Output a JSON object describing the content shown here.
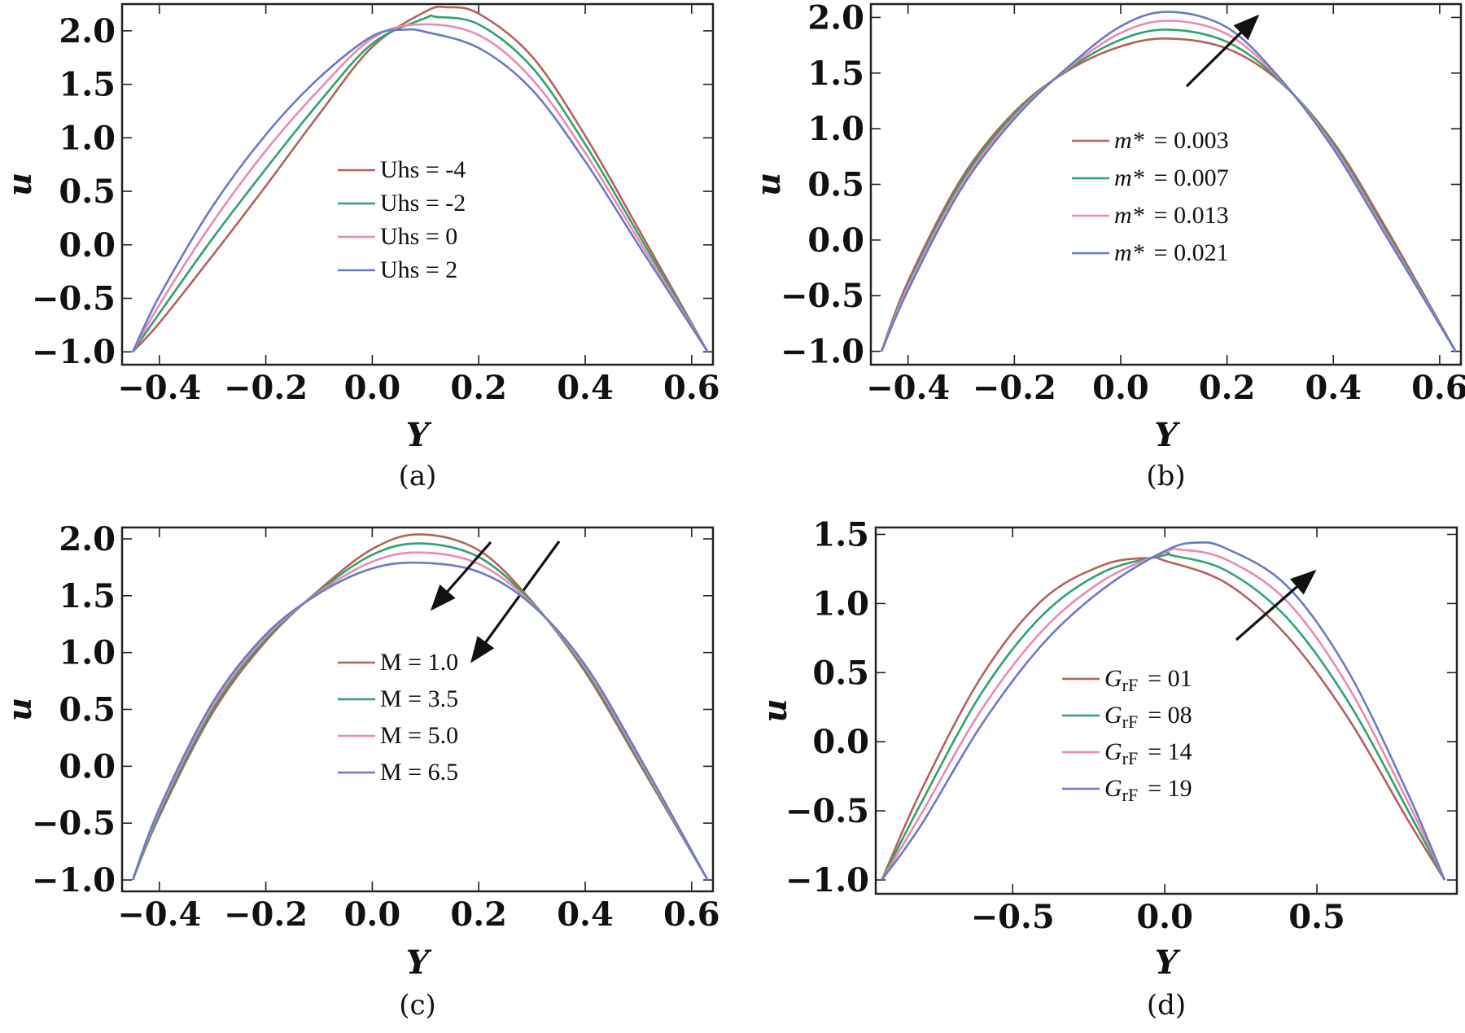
{
  "colors": {
    "red": "#b5625a",
    "green": "#2ea36b",
    "pink": "#ec8ab0",
    "blue": "#6b79c8",
    "arrow": "#111111"
  },
  "chart_data": [
    {
      "type": "line",
      "caption": "(a)",
      "xlabel": "Y",
      "ylabel": "u",
      "xlim": [
        -0.47,
        0.64
      ],
      "ylim": [
        -1.12,
        2.25
      ],
      "xticks": [
        "−0.4",
        "−0.2",
        "0.0",
        "0.2",
        "0.4",
        "0.6"
      ],
      "xtick_values": [
        -0.4,
        -0.2,
        0.0,
        0.2,
        0.4,
        0.6
      ],
      "yticks": [
        "−1.0",
        "−0.5",
        "0.0",
        "0.5",
        "1.0",
        "1.5",
        "2.0"
      ],
      "ytick_values": [
        -1.0,
        -0.5,
        0.0,
        0.5,
        1.0,
        1.5,
        2.0
      ],
      "legend_position": "center",
      "arrow": "down-left",
      "series": [
        {
          "name": "Uhs = -4",
          "color": "#b5625a",
          "x": [
            -0.45,
            -0.4,
            -0.3,
            -0.2,
            -0.1,
            0.0,
            0.1,
            0.14,
            0.2,
            0.3,
            0.4,
            0.5,
            0.63
          ],
          "y": [
            -1.0,
            -0.73,
            -0.1,
            0.55,
            1.22,
            1.85,
            2.18,
            2.22,
            2.16,
            1.76,
            1.02,
            0.15,
            -1.0
          ]
        },
        {
          "name": "Uhs = -2",
          "color": "#2ea36b",
          "x": [
            -0.45,
            -0.4,
            -0.3,
            -0.2,
            -0.1,
            0.0,
            0.1,
            0.12,
            0.2,
            0.3,
            0.4,
            0.5,
            0.63
          ],
          "y": [
            -1.0,
            -0.64,
            0.06,
            0.71,
            1.33,
            1.88,
            2.12,
            2.13,
            2.06,
            1.66,
            0.94,
            0.1,
            -1.0
          ]
        },
        {
          "name": "Uhs = 0",
          "color": "#ec8ab0",
          "x": [
            -0.45,
            -0.4,
            -0.3,
            -0.2,
            -0.1,
            0.0,
            0.09,
            0.2,
            0.3,
            0.4,
            0.5,
            0.63
          ],
          "y": [
            -1.0,
            -0.56,
            0.21,
            0.88,
            1.45,
            1.93,
            2.06,
            1.96,
            1.55,
            0.86,
            0.05,
            -1.0
          ]
        },
        {
          "name": "Uhs = 2",
          "color": "#6b79c8",
          "x": [
            -0.45,
            -0.4,
            -0.3,
            -0.2,
            -0.1,
            0.0,
            0.06,
            0.1,
            0.2,
            0.3,
            0.4,
            0.5,
            0.63
          ],
          "y": [
            -1.0,
            -0.48,
            0.36,
            1.03,
            1.56,
            1.95,
            2.01,
            1.99,
            1.84,
            1.45,
            0.78,
            0.0,
            -1.0
          ]
        }
      ]
    },
    {
      "type": "line",
      "caption": "(b)",
      "xlabel": "Y",
      "ylabel": "u",
      "xlim": [
        -0.47,
        0.64
      ],
      "ylim": [
        -1.12,
        2.12
      ],
      "xticks": [
        "−0.4",
        "−0.2",
        "0.0",
        "0.2",
        "0.4",
        "0.6"
      ],
      "xtick_values": [
        -0.4,
        -0.2,
        0.0,
        0.2,
        0.4,
        0.6
      ],
      "yticks": [
        "−1.0",
        "−0.5",
        "0.0",
        "0.5",
        "1.0",
        "1.5",
        "2.0"
      ],
      "ytick_values": [
        -1.0,
        -0.5,
        0.0,
        0.5,
        1.0,
        1.5,
        2.0
      ],
      "legend_position": "center",
      "arrow": "up-right",
      "series": [
        {
          "name_prefix": "m*",
          "name_value": "=  0.003",
          "color": "#b5625a",
          "x": [
            -0.45,
            -0.4,
            -0.3,
            -0.2,
            -0.1,
            0.0,
            0.09,
            0.2,
            0.3,
            0.4,
            0.5,
            0.63
          ],
          "y": [
            -1.0,
            -0.37,
            0.55,
            1.15,
            1.52,
            1.74,
            1.81,
            1.72,
            1.42,
            0.88,
            0.1,
            -1.0
          ]
        },
        {
          "name_prefix": "m*",
          "name_value": "=  0.007",
          "color": "#2ea36b",
          "x": [
            -0.45,
            -0.4,
            -0.3,
            -0.2,
            -0.1,
            0.0,
            0.09,
            0.2,
            0.3,
            0.4,
            0.5,
            0.63
          ],
          "y": [
            -1.0,
            -0.4,
            0.52,
            1.13,
            1.53,
            1.8,
            1.89,
            1.78,
            1.43,
            0.86,
            0.07,
            -1.0
          ]
        },
        {
          "name_prefix": "m*",
          "name_value": "=  0.013",
          "color": "#ec8ab0",
          "x": [
            -0.45,
            -0.4,
            -0.3,
            -0.2,
            -0.1,
            0.0,
            0.09,
            0.2,
            0.3,
            0.4,
            0.5,
            0.63
          ],
          "y": [
            -1.0,
            -0.42,
            0.49,
            1.11,
            1.54,
            1.86,
            1.97,
            1.85,
            1.44,
            0.84,
            0.05,
            -1.0
          ]
        },
        {
          "name_prefix": "m*",
          "name_value": "=  0.021",
          "color": "#6b79c8",
          "x": [
            -0.45,
            -0.4,
            -0.3,
            -0.2,
            -0.1,
            0.0,
            0.09,
            0.2,
            0.3,
            0.4,
            0.5,
            0.63
          ],
          "y": [
            -1.0,
            -0.45,
            0.46,
            1.09,
            1.55,
            1.92,
            2.05,
            1.91,
            1.45,
            0.82,
            0.03,
            -1.0
          ]
        }
      ]
    },
    {
      "type": "line",
      "caption": "(c)",
      "xlabel": "Y",
      "ylabel": "u",
      "xlim": [
        -0.47,
        0.64
      ],
      "ylim": [
        -1.1,
        2.1
      ],
      "xticks": [
        "−0.4",
        "−0.2",
        "0.0",
        "0.2",
        "0.4",
        "0.6"
      ],
      "xtick_values": [
        -0.4,
        -0.2,
        0.0,
        0.2,
        0.4,
        0.6
      ],
      "yticks": [
        "−1.0",
        "−0.5",
        "0.0",
        "0.5",
        "1.0",
        "1.5",
        "2.0"
      ],
      "ytick_values": [
        -1.0,
        -0.5,
        0.0,
        0.5,
        1.0,
        1.5,
        2.0
      ],
      "legend_position": "center",
      "arrow": "down-left",
      "series": [
        {
          "name": "M = 1.0",
          "color": "#b5625a",
          "x": [
            -0.45,
            -0.4,
            -0.3,
            -0.2,
            -0.1,
            0.0,
            0.09,
            0.2,
            0.3,
            0.4,
            0.5,
            0.63
          ],
          "y": [
            -1.0,
            -0.44,
            0.47,
            1.1,
            1.55,
            1.91,
            2.04,
            1.9,
            1.45,
            0.83,
            0.04,
            -1.0
          ]
        },
        {
          "name": "M = 3.5",
          "color": "#2ea36b",
          "x": [
            -0.45,
            -0.4,
            -0.3,
            -0.2,
            -0.1,
            0.0,
            0.09,
            0.2,
            0.3,
            0.4,
            0.5,
            0.63
          ],
          "y": [
            -1.0,
            -0.42,
            0.5,
            1.12,
            1.54,
            1.86,
            1.96,
            1.84,
            1.44,
            0.85,
            0.06,
            -1.0
          ]
        },
        {
          "name": "M = 5.0",
          "color": "#ec8ab0",
          "x": [
            -0.45,
            -0.4,
            -0.3,
            -0.2,
            -0.1,
            0.0,
            0.09,
            0.2,
            0.3,
            0.4,
            0.5,
            0.63
          ],
          "y": [
            -1.0,
            -0.39,
            0.53,
            1.14,
            1.53,
            1.8,
            1.88,
            1.78,
            1.43,
            0.87,
            0.08,
            -1.0
          ]
        },
        {
          "name": "M = 6.5",
          "color": "#6b79c8",
          "x": [
            -0.45,
            -0.4,
            -0.3,
            -0.2,
            -0.1,
            0.0,
            0.09,
            0.2,
            0.3,
            0.4,
            0.5,
            0.63
          ],
          "y": [
            -1.0,
            -0.37,
            0.56,
            1.16,
            1.52,
            1.74,
            1.79,
            1.71,
            1.42,
            0.89,
            0.1,
            -1.0
          ]
        }
      ]
    },
    {
      "type": "line",
      "caption": "(d)",
      "xlabel": "Y",
      "ylabel": "u",
      "xlim": [
        -0.95,
        0.96
      ],
      "ylim": [
        -1.1,
        1.55
      ],
      "xticks": [
        "−0.5",
        "0.0",
        "0.5"
      ],
      "xtick_values": [
        -0.5,
        0.0,
        0.5
      ],
      "yticks": [
        "−1.0",
        "−0.5",
        "0.0",
        "0.5",
        "1.0",
        "1.5"
      ],
      "ytick_values": [
        -1.0,
        -0.5,
        0.0,
        0.5,
        1.0,
        1.5
      ],
      "legend_position": "center",
      "arrow": "up-right",
      "series": [
        {
          "name_prefix": "G",
          "name_sub": "rF",
          "name_value": "=  01",
          "color": "#b5625a",
          "x": [
            -0.93,
            -0.8,
            -0.6,
            -0.4,
            -0.2,
            -0.05,
            0.0,
            0.2,
            0.4,
            0.6,
            0.8,
            0.92
          ],
          "y": [
            -1.0,
            -0.35,
            0.48,
            1.03,
            1.28,
            1.33,
            1.31,
            1.15,
            0.77,
            0.18,
            -0.57,
            -1.0
          ]
        },
        {
          "name_prefix": "G",
          "name_sub": "rF",
          "name_value": "=  08",
          "color": "#2ea36b",
          "x": [
            -0.93,
            -0.8,
            -0.6,
            -0.4,
            -0.2,
            0.0,
            0.02,
            0.2,
            0.4,
            0.6,
            0.8,
            0.92
          ],
          "y": [
            -1.0,
            -0.44,
            0.36,
            0.92,
            1.23,
            1.35,
            1.35,
            1.24,
            0.9,
            0.3,
            -0.5,
            -1.0
          ]
        },
        {
          "name_prefix": "G",
          "name_sub": "rF",
          "name_value": "=  14",
          "color": "#ec8ab0",
          "x": [
            -0.93,
            -0.8,
            -0.6,
            -0.4,
            -0.2,
            0.0,
            0.05,
            0.2,
            0.4,
            0.6,
            0.8,
            0.92
          ],
          "y": [
            -1.0,
            -0.52,
            0.24,
            0.81,
            1.17,
            1.37,
            1.39,
            1.32,
            1.02,
            0.41,
            -0.44,
            -1.0
          ]
        },
        {
          "name_prefix": "G",
          "name_sub": "rF",
          "name_value": "=  19",
          "color": "#6b79c8",
          "x": [
            -0.93,
            -0.8,
            -0.6,
            -0.4,
            -0.2,
            0.0,
            0.1,
            0.2,
            0.4,
            0.6,
            0.8,
            0.92
          ],
          "y": [
            -1.0,
            -0.6,
            0.13,
            0.71,
            1.11,
            1.38,
            1.44,
            1.4,
            1.13,
            0.52,
            -0.38,
            -1.0
          ]
        }
      ]
    }
  ]
}
